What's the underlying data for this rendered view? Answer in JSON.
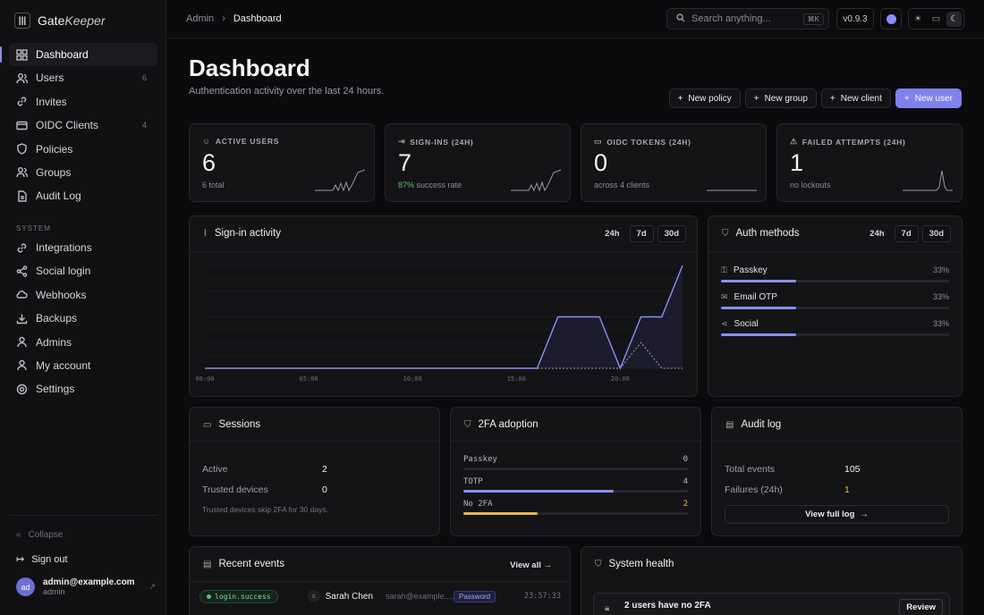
{
  "brand": {
    "name": "Gate",
    "name_italic": "Keeper"
  },
  "sidebar": {
    "items": [
      {
        "label": "Dashboard",
        "count": ""
      },
      {
        "label": "Users",
        "count": "6"
      },
      {
        "label": "Invites",
        "count": ""
      },
      {
        "label": "OIDC Clients",
        "count": "4"
      },
      {
        "label": "Policies",
        "count": ""
      },
      {
        "label": "Groups",
        "count": ""
      },
      {
        "label": "Audit Log",
        "count": ""
      }
    ],
    "section": "SYSTEM",
    "system_items": [
      {
        "label": "Integrations"
      },
      {
        "label": "Social login"
      },
      {
        "label": "Webhooks"
      },
      {
        "label": "Backups"
      },
      {
        "label": "Admins"
      },
      {
        "label": "My account"
      },
      {
        "label": "Settings"
      }
    ],
    "collapse": "Collapse",
    "signout": "Sign out",
    "user": {
      "initials": "ad",
      "email": "admin@example.com",
      "role": "admin"
    }
  },
  "topbar": {
    "breadcrumb_root": "Admin",
    "breadcrumb_sep": "›",
    "breadcrumb_current": "Dashboard",
    "search_placeholder": "Search anything...",
    "search_kbd": "⌘K",
    "version": "v0.9.3"
  },
  "page": {
    "title": "Dashboard",
    "subtitle": "Authentication activity over the last 24 hours.",
    "actions": [
      "New policy",
      "New group",
      "New client",
      "New user"
    ]
  },
  "stats": [
    {
      "label": "ACTIVE USERS",
      "value": "6",
      "sub_strong": "",
      "sub": "6 total",
      "icon": "users-icon"
    },
    {
      "label": "SIGN-INS (24H)",
      "value": "7",
      "sub_strong": "87%",
      "sub": "success rate",
      "icon": "signin-icon"
    },
    {
      "label": "OIDC TOKENS (24H)",
      "value": "0",
      "sub_strong": "",
      "sub": "across 4 clients",
      "icon": "token-icon"
    },
    {
      "label": "FAILED ATTEMPTS (24H)",
      "value": "1",
      "sub_strong": "",
      "sub": "no lockouts",
      "icon": "warning-icon"
    }
  ],
  "activity": {
    "title": "Sign-in activity",
    "ranges": [
      "24h",
      "7d",
      "30d"
    ],
    "ticks": [
      "00:00",
      "05:00",
      "10:00",
      "15:00",
      "20:00"
    ]
  },
  "auth_methods": {
    "title": "Auth methods",
    "ranges": [
      "24h",
      "7d",
      "30d"
    ],
    "rows": [
      {
        "name": "Passkey",
        "pct": "33%",
        "fraction": 0.33
      },
      {
        "name": "Email OTP",
        "pct": "33%",
        "fraction": 0.33
      },
      {
        "name": "Social",
        "pct": "33%",
        "fraction": 0.33
      }
    ]
  },
  "sessions": {
    "title": "Sessions",
    "active_label": "Active",
    "active_value": "2",
    "trusted_label": "Trusted devices",
    "trusted_value": "0",
    "note": "Trusted devices skip 2FA for 30 days."
  },
  "tfa": {
    "title": "2FA adoption",
    "rows": [
      {
        "name": "Passkey",
        "value": "0",
        "fraction": 0,
        "color": "#8b8ef7"
      },
      {
        "name": "TOTP",
        "value": "4",
        "fraction": 0.67,
        "color": "#8b8ef7"
      },
      {
        "name": "No 2FA",
        "value": "2",
        "fraction": 0.33,
        "color": "#e8b54a"
      }
    ]
  },
  "audit": {
    "title": "Audit log",
    "total_label": "Total events",
    "total_value": "105",
    "fail_label": "Failures (24h)",
    "fail_value": "1",
    "link": "View full log"
  },
  "recent": {
    "title": "Recent events",
    "view_all": "View all",
    "row": {
      "event": "login.success",
      "name": "Sarah Chen",
      "email": "sarah@example....",
      "method": "Password",
      "time": "23:57:33"
    }
  },
  "health": {
    "title": "System health",
    "alert": "2 users have no 2FA",
    "action": "Review"
  },
  "chart_data": {
    "type": "line",
    "x": [
      "00:00",
      "01:00",
      "02:00",
      "03:00",
      "04:00",
      "05:00",
      "06:00",
      "07:00",
      "08:00",
      "09:00",
      "10:00",
      "11:00",
      "12:00",
      "13:00",
      "14:00",
      "15:00",
      "16:00",
      "17:00",
      "18:00",
      "19:00",
      "20:00",
      "21:00",
      "22:00",
      "23:00"
    ],
    "series": [
      {
        "values": [
          0,
          0,
          0,
          0,
          0,
          0,
          0,
          0,
          0,
          0,
          0,
          0,
          0,
          0,
          0,
          0,
          0,
          2,
          2,
          2,
          0,
          2,
          2,
          4
        ]
      },
      {
        "values": [
          0,
          0,
          0,
          0,
          0,
          0,
          0,
          0,
          0,
          0,
          0,
          0,
          0,
          0,
          0,
          0,
          0,
          0,
          0,
          0,
          0,
          1,
          0,
          0
        ]
      }
    ]
  }
}
